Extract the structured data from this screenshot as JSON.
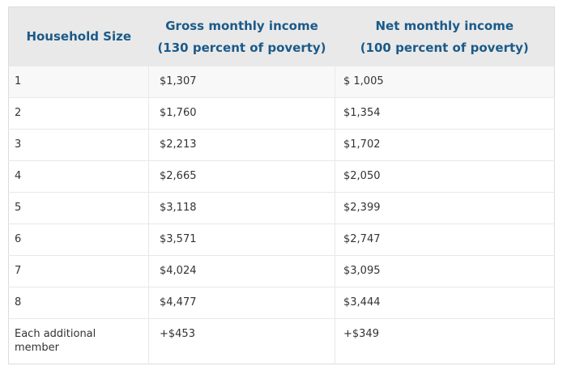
{
  "table": {
    "title_semantic": "Income eligibility by household size",
    "headers": [
      {
        "line1": "Household Size",
        "line2": ""
      },
      {
        "line1": "Gross monthly income",
        "line2": "(130 percent of poverty)"
      },
      {
        "line1": "Net monthly income",
        "line2": "(100 percent of poverty)"
      }
    ],
    "rows": [
      [
        "1",
        "$1,307",
        "$ 1,005"
      ],
      [
        "2",
        "$1,760",
        "$1,354"
      ],
      [
        "3",
        "$2,213",
        "$1,702"
      ],
      [
        "4",
        "$2,665",
        "$2,050"
      ],
      [
        "5",
        "$3,118",
        "$2,399"
      ],
      [
        "6",
        "$3,571",
        "$2,747"
      ],
      [
        "7",
        "$4,024",
        "$3,095"
      ],
      [
        "8",
        "$4,477",
        "$3,444"
      ],
      [
        "Each additional member",
        "+$453",
        "+$349"
      ]
    ]
  },
  "colors": {
    "page_bg": "#ffffff",
    "header_bg": "#e9e9e9",
    "header_text": "#1b5a89",
    "body_text": "#333333",
    "row_border": "#e8e8e8",
    "outer_border": "#dcdcdc",
    "first_row_bg": "#f8f8f8"
  }
}
